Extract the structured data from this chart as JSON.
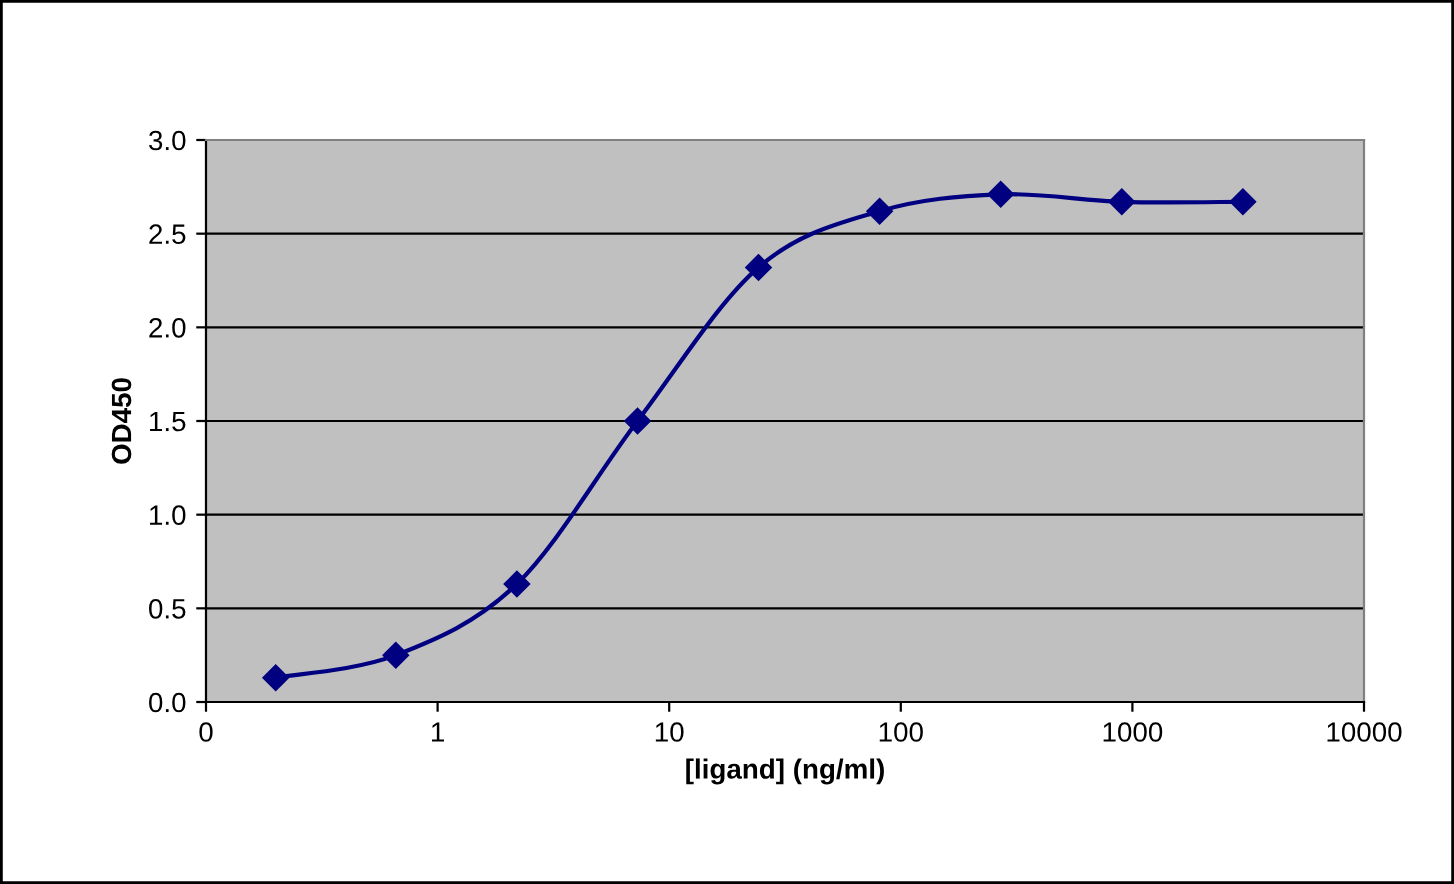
{
  "chart_data": {
    "type": "line",
    "xlabel": "[ligand] (ng/ml)",
    "ylabel": "OD450",
    "x": [
      0.2,
      0.66,
      2.2,
      7.3,
      24.3,
      81,
      270,
      900,
      3000
    ],
    "series": [
      {
        "color": "#000080",
        "values": [
          0.13,
          0.25,
          0.63,
          1.5,
          2.32,
          2.62,
          2.71,
          2.67,
          2.67
        ]
      }
    ],
    "log": "x",
    "xlim": [
      0.1,
      10000
    ],
    "xticks": [
      {
        "value": 0.1,
        "label": "0"
      },
      1,
      10,
      100,
      1000,
      10000
    ],
    "ylim": [
      0,
      3
    ],
    "yticks": [
      {
        "value": 0,
        "label": "0.0"
      },
      {
        "value": 0.5,
        "label": "0.5"
      },
      {
        "value": 1,
        "label": "1.0"
      },
      {
        "value": 1.5,
        "label": "1.5"
      },
      {
        "value": 2,
        "label": "2.0"
      },
      {
        "value": 2.5,
        "label": "2.5"
      },
      {
        "value": 3,
        "label": "3.0"
      }
    ],
    "grid": "y",
    "marker": "diamond",
    "line_style": "solid",
    "legend": false
  }
}
